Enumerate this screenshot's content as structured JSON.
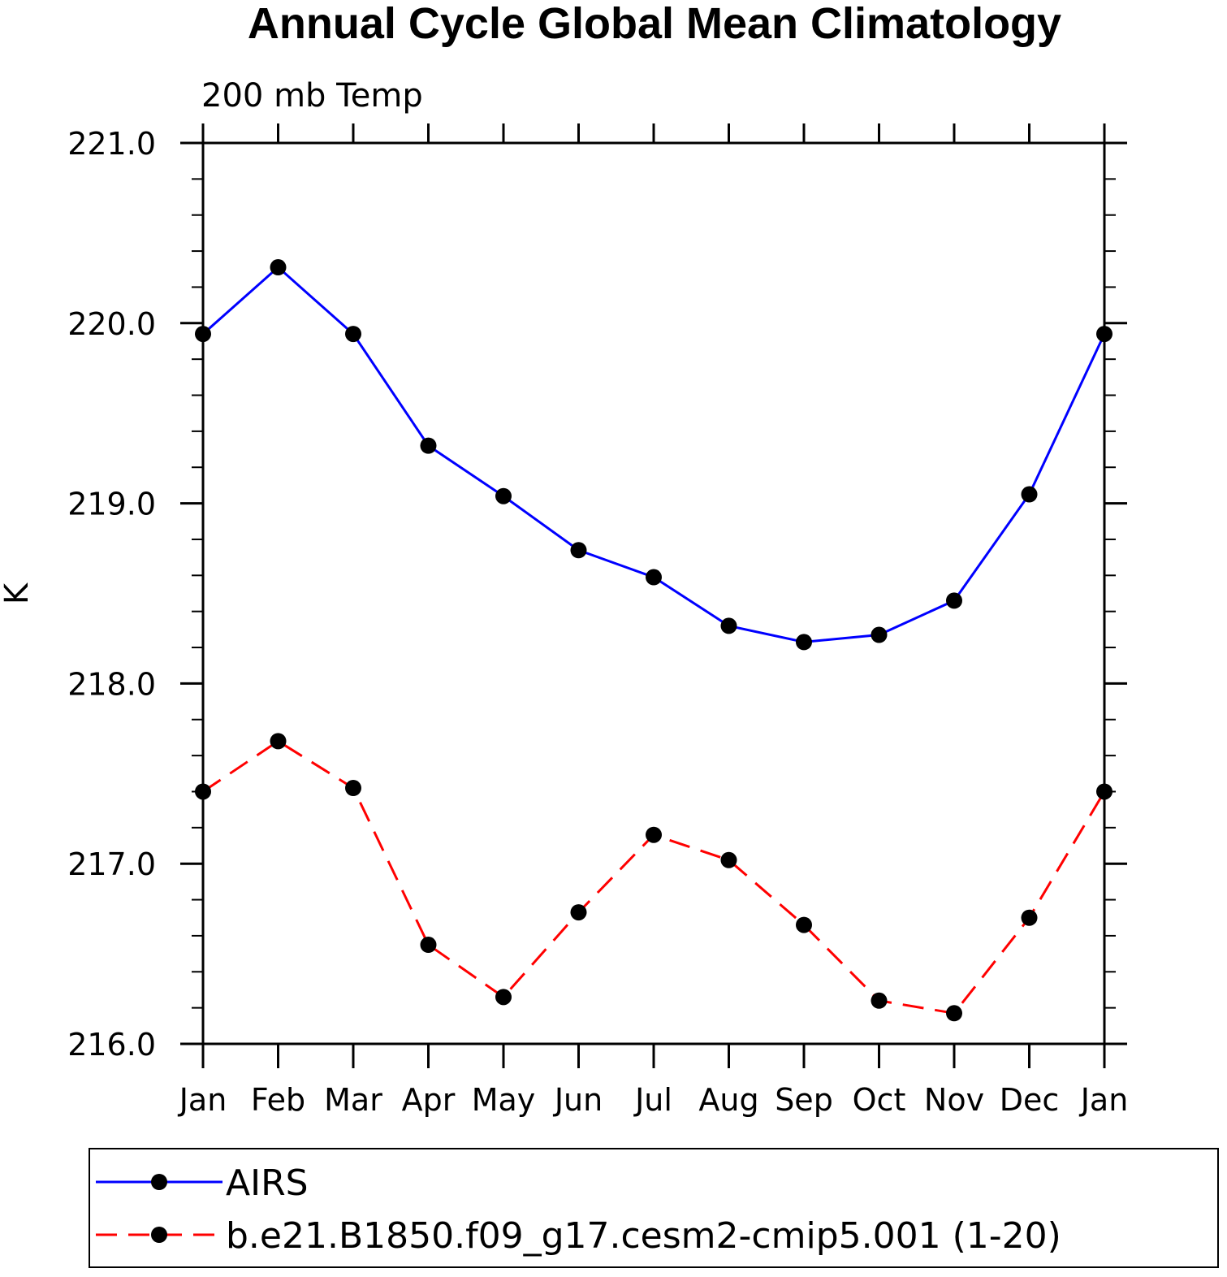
{
  "chart_data": {
    "type": "line",
    "title": "Annual Cycle Global Mean Climatology",
    "subtitle": "200 mb Temp",
    "ylabel": "K",
    "xlabel": "",
    "categories": [
      "Jan",
      "Feb",
      "Mar",
      "Apr",
      "May",
      "Jun",
      "Jul",
      "Aug",
      "Sep",
      "Oct",
      "Nov",
      "Dec",
      "Jan"
    ],
    "ylim": [
      216.0,
      221.0
    ],
    "y_major_ticks": [
      "216.0",
      "217.0",
      "218.0",
      "219.0",
      "220.0",
      "221.0"
    ],
    "y_minor_step": 0.2,
    "grid": false,
    "legend_placement": "bottom",
    "series": [
      {
        "name": "AIRS",
        "color": "#0000ff",
        "line_style": "solid",
        "marker": "filled-circle",
        "values": [
          219.94,
          220.31,
          219.94,
          219.32,
          219.04,
          218.74,
          218.59,
          218.32,
          218.23,
          218.27,
          218.46,
          219.05,
          219.94
        ]
      },
      {
        "name": "b.e21.B1850.f09_g17.cesm2-cmip5.001 (1-20)",
        "color": "#ff0000",
        "line_style": "dashed",
        "marker": "filled-circle",
        "values": [
          217.4,
          217.68,
          217.42,
          216.55,
          216.26,
          216.73,
          217.16,
          217.02,
          216.66,
          216.24,
          216.17,
          216.7,
          217.4
        ]
      }
    ]
  }
}
